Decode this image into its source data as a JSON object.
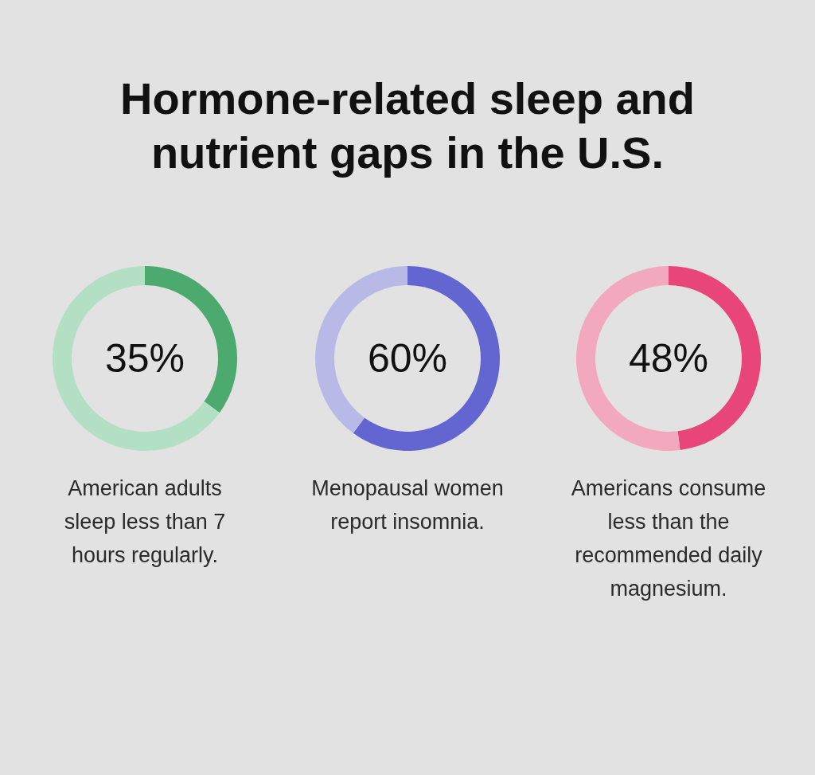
{
  "chart_data": [
    {
      "type": "other",
      "title": "Hormone-related sleep and nutrient gaps in the U.S."
    },
    {
      "type": "donut",
      "categories": [
        null,
        null
      ],
      "values": [
        35,
        65
      ],
      "colors": [
        "#4caa6e",
        "#b3dfc4"
      ],
      "annotations": [
        "35%",
        "American adults sleep less than 7 hours regularly."
      ]
    },
    {
      "type": "donut",
      "categories": [
        null,
        null
      ],
      "values": [
        60,
        40
      ],
      "colors": [
        "#6366d1",
        "#b9b9e8"
      ],
      "annotations": [
        "60%",
        "Menopausal women report insomnia."
      ]
    },
    {
      "type": "donut",
      "categories": [
        null,
        null
      ],
      "values": [
        48,
        52
      ],
      "colors": [
        "#e8457a",
        "#f2a9c0"
      ],
      "annotations": [
        "48%",
        "Americans consume less than the recommended daily magnesium."
      ]
    }
  ]
}
